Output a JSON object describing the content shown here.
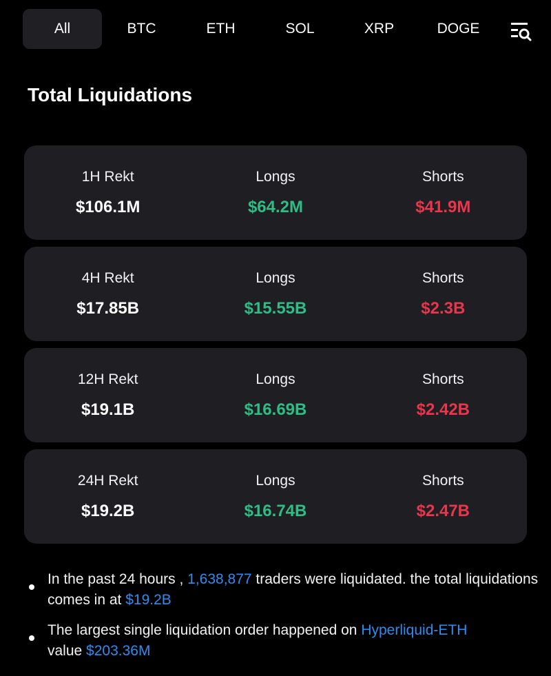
{
  "tabs": [
    {
      "label": "All",
      "active": true
    },
    {
      "label": "BTC",
      "active": false
    },
    {
      "label": "ETH",
      "active": false
    },
    {
      "label": "SOL",
      "active": false
    },
    {
      "label": "XRP",
      "active": false
    },
    {
      "label": "DOGE",
      "active": false
    }
  ],
  "filter_icon": "filter-search-icon",
  "section_title": "Total Liquidations",
  "cards": [
    {
      "period": "1H  Rekt",
      "total": "$106.1M",
      "longs_label": "Longs",
      "longs": "$64.2M",
      "shorts_label": "Shorts",
      "shorts": "$41.9M"
    },
    {
      "period": "4H Rekt",
      "total": "$17.85B",
      "longs_label": "Longs",
      "longs": "$15.55B",
      "shorts_label": "Shorts",
      "shorts": "$2.3B"
    },
    {
      "period": "12H Rekt",
      "total": "$19.1B",
      "longs_label": "Longs",
      "longs": "$16.69B",
      "shorts_label": "Shorts",
      "shorts": "$2.42B"
    },
    {
      "period": "24H Rekt",
      "total": "$19.2B",
      "longs_label": "Longs",
      "longs": "$16.74B",
      "shorts_label": "Shorts",
      "shorts": "$2.47B"
    }
  ],
  "summary": {
    "b1_pre": "In the past 24 hours , ",
    "b1_traders": "1,638,877",
    "b1_mid": " traders were liquidated. the total liquidations comes in at ",
    "b1_total": "$19.2B",
    "b2_pre": "The largest single liquidation order happened on ",
    "b2_exchange": "Hyperliquid-ETH",
    "b2_mid": " value ",
    "b2_value": "$203.36M"
  },
  "colors": {
    "background": "#000000",
    "card": "#1f1f23",
    "green": "#2ebd85",
    "red": "#e8364c",
    "link": "#2f8cf0"
  }
}
